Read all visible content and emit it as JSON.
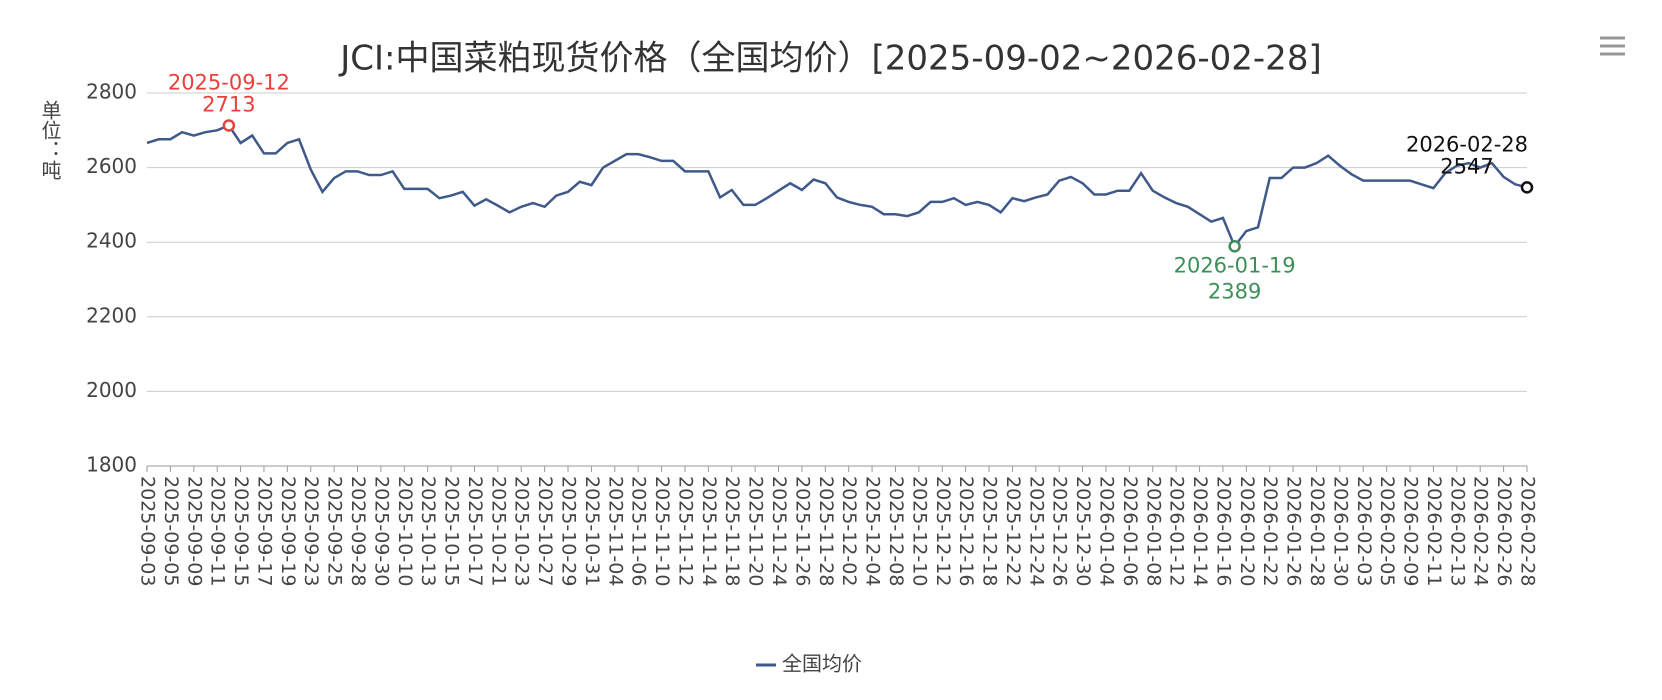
{
  "chart_data": {
    "type": "line",
    "title": "JCI:中国菜粕现货价格（全国均价）[2025-09-02~2026-02-28]",
    "y_label": "单位：吨",
    "categories": [
      "2025-09-03",
      null,
      "2025-09-05",
      null,
      "2025-09-09",
      null,
      "2025-09-11",
      null,
      "2025-09-15",
      null,
      "2025-09-17",
      null,
      "2025-09-19",
      null,
      "2025-09-23",
      null,
      "2025-09-25",
      null,
      "2025-09-28",
      null,
      "2025-09-30",
      null,
      "2025-10-10",
      null,
      "2025-10-13",
      null,
      "2025-10-15",
      null,
      "2025-10-17",
      null,
      "2025-10-21",
      null,
      "2025-10-23",
      null,
      "2025-10-27",
      null,
      "2025-10-29",
      null,
      "2025-10-31",
      null,
      "2025-11-04",
      null,
      "2025-11-06",
      null,
      "2025-11-10",
      null,
      "2025-11-12",
      null,
      "2025-11-14",
      null,
      "2025-11-18",
      null,
      "2025-11-20",
      null,
      "2025-11-24",
      null,
      "2025-11-26",
      null,
      "2025-11-28",
      null,
      "2025-12-02",
      null,
      "2025-12-04",
      null,
      "2025-12-08",
      null,
      "2025-12-10",
      null,
      "2025-12-12",
      null,
      "2025-12-16",
      null,
      "2025-12-18",
      null,
      "2025-12-22",
      null,
      "2025-12-24",
      null,
      "2025-12-26",
      null,
      "2025-12-30",
      null,
      "2026-01-04",
      null,
      "2026-01-06",
      null,
      "2026-01-08",
      null,
      "2026-01-12",
      null,
      "2026-01-14",
      null,
      "2026-01-16",
      null,
      "2026-01-20",
      null,
      "2026-01-22",
      null,
      "2026-01-26",
      null,
      "2026-01-28",
      null,
      "2026-01-30",
      null,
      "2026-02-03",
      null,
      "2026-02-05",
      null,
      "2026-02-09",
      null,
      "2026-02-11",
      null,
      "2026-02-13",
      null,
      "2026-02-24",
      null,
      "2026-02-26",
      null,
      "2026-02-28"
    ],
    "series": [
      {
        "name": "全国均价",
        "color": "#3f5a8a",
        "values": [
          2666,
          2676,
          2676,
          2695,
          2686,
          2695,
          2700,
          2713,
          2666,
          2686,
          2638,
          2638,
          2666,
          2676,
          2595,
          2535,
          2572,
          2590,
          2590,
          2580,
          2580,
          2590,
          2543,
          2543,
          2543,
          2518,
          2525,
          2535,
          2498,
          2515,
          2498,
          2480,
          2495,
          2505,
          2495,
          2525,
          2535,
          2562,
          2553,
          2600,
          2618,
          2636,
          2636,
          2628,
          2618,
          2618,
          2590,
          2590,
          2590,
          2520,
          2540,
          2500,
          2500,
          2518,
          2538,
          2558,
          2540,
          2568,
          2558,
          2520,
          2508,
          2500,
          2495,
          2475,
          2475,
          2470,
          2480,
          2508,
          2508,
          2518,
          2500,
          2508,
          2500,
          2480,
          2518,
          2510,
          2520,
          2528,
          2565,
          2575,
          2558,
          2528,
          2528,
          2538,
          2538,
          2585,
          2538,
          2520,
          2505,
          2495,
          2475,
          2455,
          2465,
          2389,
          2430,
          2440,
          2572,
          2572,
          2600,
          2600,
          2612,
          2632,
          2605,
          2582,
          2565,
          2565,
          2565,
          2565,
          2565,
          2555,
          2545,
          2585,
          2605,
          2612,
          2600,
          2612,
          2575,
          2555,
          2547
        ]
      }
    ],
    "annotations": [
      {
        "index": 7,
        "date": "2025-09-12",
        "value": 2713,
        "color": "#e8413c",
        "position": "above"
      },
      {
        "index": 93,
        "date": "2026-01-19",
        "value": 2389,
        "color": "#3d8f5a",
        "position": "below"
      },
      {
        "index": 118,
        "date": "2026-02-28",
        "value": 2547,
        "color": "#111111",
        "position": "above"
      }
    ],
    "ylim": [
      1800,
      2800
    ],
    "yticks": [
      1800,
      2000,
      2200,
      2400,
      2600,
      2800
    ],
    "grid": true,
    "legend": "bottom"
  }
}
